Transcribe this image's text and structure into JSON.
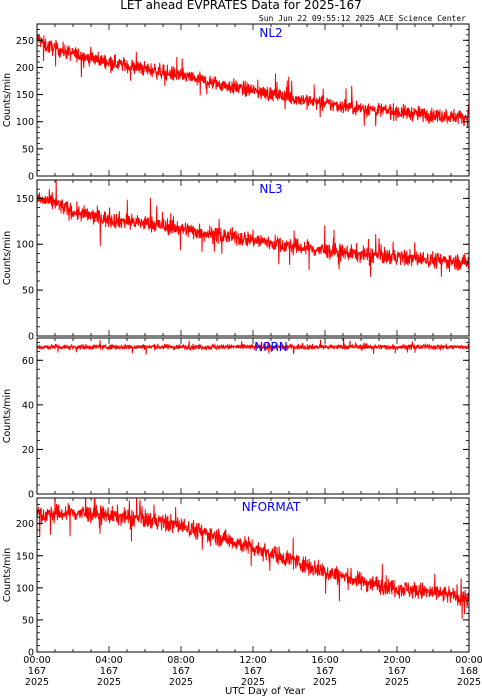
{
  "title": "LET ahead EVPRATES Data for 2025-167",
  "timestamp": "Sun Jun 22 09:55:12 2025 ACE Science Center",
  "xlabel": "UTC Day of Year",
  "colors": {
    "series": "#ff0000",
    "label": "#0000ff",
    "axis": "#000000"
  },
  "x_ticks": [
    {
      "hours": 0,
      "time": "00:00",
      "doy": "167",
      "year": "2025"
    },
    {
      "hours": 4,
      "time": "04:00",
      "doy": "167",
      "year": "2025"
    },
    {
      "hours": 8,
      "time": "08:00",
      "doy": "167",
      "year": "2025"
    },
    {
      "hours": 12,
      "time": "12:00",
      "doy": "167",
      "year": "2025"
    },
    {
      "hours": 16,
      "time": "16:00",
      "doy": "167",
      "year": "2025"
    },
    {
      "hours": 20,
      "time": "20:00",
      "doy": "167",
      "year": "2025"
    },
    {
      "hours": 24,
      "time": "00:00",
      "doy": "168",
      "year": "2025"
    }
  ],
  "chart_data": [
    {
      "type": "line",
      "name": "NL2",
      "ylabel": "Counts/min",
      "ylim": [
        0,
        280
      ],
      "yticks": [
        0,
        50,
        100,
        150,
        200,
        250
      ],
      "xlim_hours": [
        0,
        24
      ],
      "trend_hours": [
        0,
        0.5,
        2,
        4,
        6,
        8,
        10,
        12,
        14,
        16,
        18,
        20,
        22,
        24
      ],
      "trend_values": [
        255,
        240,
        225,
        210,
        197,
        185,
        170,
        157,
        145,
        133,
        125,
        118,
        112,
        108
      ],
      "noise": 14
    },
    {
      "type": "line",
      "name": "NL3",
      "ylabel": "Counts/min",
      "ylim": [
        0,
        170
      ],
      "yticks": [
        0,
        50,
        100,
        150
      ],
      "xlim_hours": [
        0,
        24
      ],
      "trend_hours": [
        0,
        1,
        2,
        4,
        6,
        8,
        10,
        12,
        14,
        16,
        18,
        20,
        22,
        24
      ],
      "trend_values": [
        150,
        145,
        135,
        127,
        123,
        117,
        110,
        105,
        98,
        93,
        89,
        86,
        83,
        80
      ],
      "noise": 9
    },
    {
      "type": "line",
      "name": "NPRN",
      "ylabel": "Counts/min",
      "ylim": [
        0,
        70
      ],
      "yticks": [
        0,
        20,
        40,
        60
      ],
      "xlim_hours": [
        0,
        24
      ],
      "trend_hours": [
        0,
        24
      ],
      "trend_values": [
        66,
        66
      ],
      "noise": 1.2
    },
    {
      "type": "line",
      "name": "NFORMAT",
      "ylabel": "Counts/min",
      "ylim": [
        0,
        240
      ],
      "yticks": [
        0,
        50,
        100,
        150,
        200
      ],
      "xlim_hours": [
        0,
        24
      ],
      "trend_hours": [
        0,
        2,
        4,
        6,
        8,
        10,
        12,
        14,
        16,
        18,
        20,
        22,
        24
      ],
      "trend_values": [
        213,
        217,
        213,
        207,
        197,
        180,
        163,
        145,
        125,
        110,
        100,
        92,
        85
      ],
      "noise": 14
    }
  ]
}
